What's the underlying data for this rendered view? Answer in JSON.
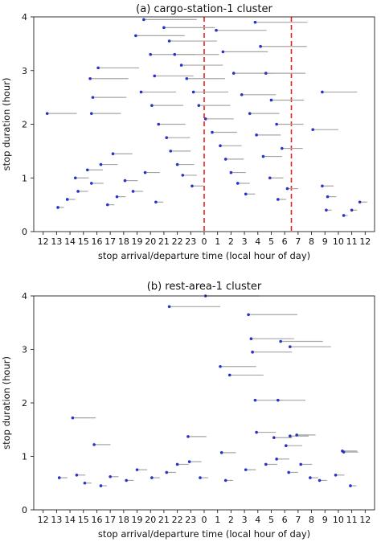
{
  "chart_data": [
    {
      "type": "scatter",
      "title": "(a) cargo-station-1 cluster",
      "xlabel": "stop arrival/departure time (local hour of day)",
      "ylabel": "stop duration (hour)",
      "x_tick_labels": [
        "12",
        "13",
        "14",
        "15",
        "16",
        "17",
        "18",
        "19",
        "20",
        "21",
        "22",
        "23",
        "0",
        "1",
        "2",
        "3",
        "4",
        "5",
        "6",
        "7",
        "8",
        "9",
        "10",
        "11",
        "12"
      ],
      "y_tick_labels": [
        "0",
        "1",
        "2",
        "3",
        "4"
      ],
      "ylim": [
        0,
        4
      ],
      "xlim_hours": [
        11.3,
        36.7
      ],
      "grid": false,
      "vertical_reference_lines_at_hour": [
        "0",
        "6.5"
      ],
      "vertical_reference_color": "#e8211f",
      "point_color": "#2a31c8",
      "segment_color": "#a6a6a6",
      "note_encoding": "each stop is a dot at arrival time with a gray horizontal segment extending to departure time",
      "stops": [
        {
          "arrive": 12.3,
          "duration": 2.2
        },
        {
          "arrive": 15.5,
          "duration": 2.85
        },
        {
          "arrive": 15.7,
          "duration": 2.5
        },
        {
          "arrive": 15.6,
          "duration": 2.2
        },
        {
          "arrive": 16.1,
          "duration": 3.05
        },
        {
          "arrive": 19.5,
          "duration": 3.95
        },
        {
          "arrive": 18.9,
          "duration": 3.65
        },
        {
          "arrive": 20.0,
          "duration": 3.3
        },
        {
          "arrive": 20.3,
          "duration": 2.9
        },
        {
          "arrive": 19.3,
          "duration": 2.6
        },
        {
          "arrive": 20.1,
          "duration": 2.35
        },
        {
          "arrive": 20.6,
          "duration": 2.0
        },
        {
          "arrive": 21.2,
          "duration": 1.75
        },
        {
          "arrive": 21.5,
          "duration": 1.5
        },
        {
          "arrive": 22.0,
          "duration": 1.25
        },
        {
          "arrive": 22.4,
          "duration": 1.05
        },
        {
          "arrive": 23.1,
          "duration": 0.85
        },
        {
          "arrive": 21.0,
          "duration": 3.8
        },
        {
          "arrive": 21.4,
          "duration": 3.55
        },
        {
          "arrive": 21.8,
          "duration": 3.3
        },
        {
          "arrive": 22.3,
          "duration": 3.1
        },
        {
          "arrive": 22.7,
          "duration": 2.85
        },
        {
          "arrive": 23.2,
          "duration": 2.6
        },
        {
          "arrive": 23.6,
          "duration": 2.35
        },
        {
          "arrive": 24.1,
          "duration": 2.1
        },
        {
          "arrive": 24.6,
          "duration": 1.85
        },
        {
          "arrive": 25.2,
          "duration": 1.6
        },
        {
          "arrive": 25.6,
          "duration": 1.35
        },
        {
          "arrive": 26.0,
          "duration": 1.1
        },
        {
          "arrive": 26.5,
          "duration": 0.9
        },
        {
          "arrive": 27.1,
          "duration": 0.7
        },
        {
          "arrive": 27.8,
          "duration": 3.9
        },
        {
          "arrive": 28.2,
          "duration": 3.45
        },
        {
          "arrive": 28.6,
          "duration": 2.95
        },
        {
          "arrive": 29.0,
          "duration": 2.45
        },
        {
          "arrive": 29.4,
          "duration": 2.0
        },
        {
          "arrive": 29.8,
          "duration": 1.55
        },
        {
          "arrive": 24.9,
          "duration": 3.75
        },
        {
          "arrive": 25.4,
          "duration": 3.35
        },
        {
          "arrive": 26.2,
          "duration": 2.95
        },
        {
          "arrive": 26.8,
          "duration": 2.55
        },
        {
          "arrive": 27.4,
          "duration": 2.2
        },
        {
          "arrive": 27.9,
          "duration": 1.8
        },
        {
          "arrive": 28.4,
          "duration": 1.4
        },
        {
          "arrive": 28.9,
          "duration": 1.0
        },
        {
          "arrive": 29.5,
          "duration": 0.6
        },
        {
          "arrive": 30.2,
          "duration": 0.8
        },
        {
          "arrive": 32.8,
          "duration": 2.6
        },
        {
          "arrive": 32.1,
          "duration": 1.9
        },
        {
          "arrive": 32.8,
          "duration": 0.85
        },
        {
          "arrive": 33.2,
          "duration": 0.65
        },
        {
          "arrive": 33.1,
          "duration": 0.4
        },
        {
          "arrive": 34.4,
          "duration": 0.3
        },
        {
          "arrive": 35.0,
          "duration": 0.4
        },
        {
          "arrive": 35.6,
          "duration": 0.55
        },
        {
          "arrive": 14.4,
          "duration": 1.0
        },
        {
          "arrive": 15.3,
          "duration": 1.15
        },
        {
          "arrive": 15.6,
          "duration": 0.9
        },
        {
          "arrive": 16.3,
          "duration": 1.25
        },
        {
          "arrive": 17.2,
          "duration": 1.45
        },
        {
          "arrive": 18.1,
          "duration": 0.95
        },
        {
          "arrive": 18.7,
          "duration": 0.75
        },
        {
          "arrive": 19.6,
          "duration": 1.1
        },
        {
          "arrive": 20.4,
          "duration": 0.55
        },
        {
          "arrive": 13.1,
          "duration": 0.45
        },
        {
          "arrive": 13.8,
          "duration": 0.6
        },
        {
          "arrive": 14.6,
          "duration": 0.75
        },
        {
          "arrive": 16.8,
          "duration": 0.5
        },
        {
          "arrive": 17.5,
          "duration": 0.65
        }
      ]
    },
    {
      "type": "scatter",
      "title": "(b) rest-area-1 cluster",
      "xlabel": "stop arrival/departure time (local hour of day)",
      "ylabel": "stop duration (hour)",
      "x_tick_labels": [
        "12",
        "13",
        "14",
        "15",
        "16",
        "17",
        "18",
        "19",
        "20",
        "21",
        "22",
        "23",
        "0",
        "1",
        "2",
        "3",
        "4",
        "5",
        "6",
        "7",
        "8",
        "9",
        "10",
        "11",
        "12"
      ],
      "y_tick_labels": [
        "0",
        "1",
        "2",
        "3",
        "4"
      ],
      "ylim": [
        0,
        4
      ],
      "xlim_hours": [
        11.3,
        36.7
      ],
      "grid": false,
      "point_color": "#2a31c8",
      "segment_color": "#a6a6a6",
      "stops": [
        {
          "arrive": 14.2,
          "duration": 1.72
        },
        {
          "arrive": 15.8,
          "duration": 1.22
        },
        {
          "arrive": 21.4,
          "duration": 3.8
        },
        {
          "arrive": 24.1,
          "duration": 4.0
        },
        {
          "arrive": 25.2,
          "duration": 2.68
        },
        {
          "arrive": 25.9,
          "duration": 2.52
        },
        {
          "arrive": 27.3,
          "duration": 3.65
        },
        {
          "arrive": 27.5,
          "duration": 3.2
        },
        {
          "arrive": 27.6,
          "duration": 2.95
        },
        {
          "arrive": 27.8,
          "duration": 2.05
        },
        {
          "arrive": 29.5,
          "duration": 2.05
        },
        {
          "arrive": 30.4,
          "duration": 3.05
        },
        {
          "arrive": 29.7,
          "duration": 3.15
        },
        {
          "arrive": 27.9,
          "duration": 1.45
        },
        {
          "arrive": 29.2,
          "duration": 1.35
        },
        {
          "arrive": 30.1,
          "duration": 1.2
        },
        {
          "arrive": 30.4,
          "duration": 1.38
        },
        {
          "arrive": 30.9,
          "duration": 1.4
        },
        {
          "arrive": 22.8,
          "duration": 1.37
        },
        {
          "arrive": 25.3,
          "duration": 1.07
        },
        {
          "arrive": 34.3,
          "duration": 1.1
        },
        {
          "arrive": 34.4,
          "duration": 1.08
        },
        {
          "arrive": 13.2,
          "duration": 0.6
        },
        {
          "arrive": 14.5,
          "duration": 0.65
        },
        {
          "arrive": 15.1,
          "duration": 0.5
        },
        {
          "arrive": 16.3,
          "duration": 0.45
        },
        {
          "arrive": 17.0,
          "duration": 0.62
        },
        {
          "arrive": 18.2,
          "duration": 0.55
        },
        {
          "arrive": 19.0,
          "duration": 0.75
        },
        {
          "arrive": 20.1,
          "duration": 0.6
        },
        {
          "arrive": 21.2,
          "duration": 0.7
        },
        {
          "arrive": 22.0,
          "duration": 0.85
        },
        {
          "arrive": 22.9,
          "duration": 0.9
        },
        {
          "arrive": 23.7,
          "duration": 0.6
        },
        {
          "arrive": 25.6,
          "duration": 0.55
        },
        {
          "arrive": 27.1,
          "duration": 0.75
        },
        {
          "arrive": 28.6,
          "duration": 0.85
        },
        {
          "arrive": 29.4,
          "duration": 0.95
        },
        {
          "arrive": 30.3,
          "duration": 0.7
        },
        {
          "arrive": 31.2,
          "duration": 0.85
        },
        {
          "arrive": 31.9,
          "duration": 0.6
        },
        {
          "arrive": 32.6,
          "duration": 0.55
        },
        {
          "arrive": 33.8,
          "duration": 0.65
        },
        {
          "arrive": 34.9,
          "duration": 0.45
        }
      ]
    }
  ]
}
